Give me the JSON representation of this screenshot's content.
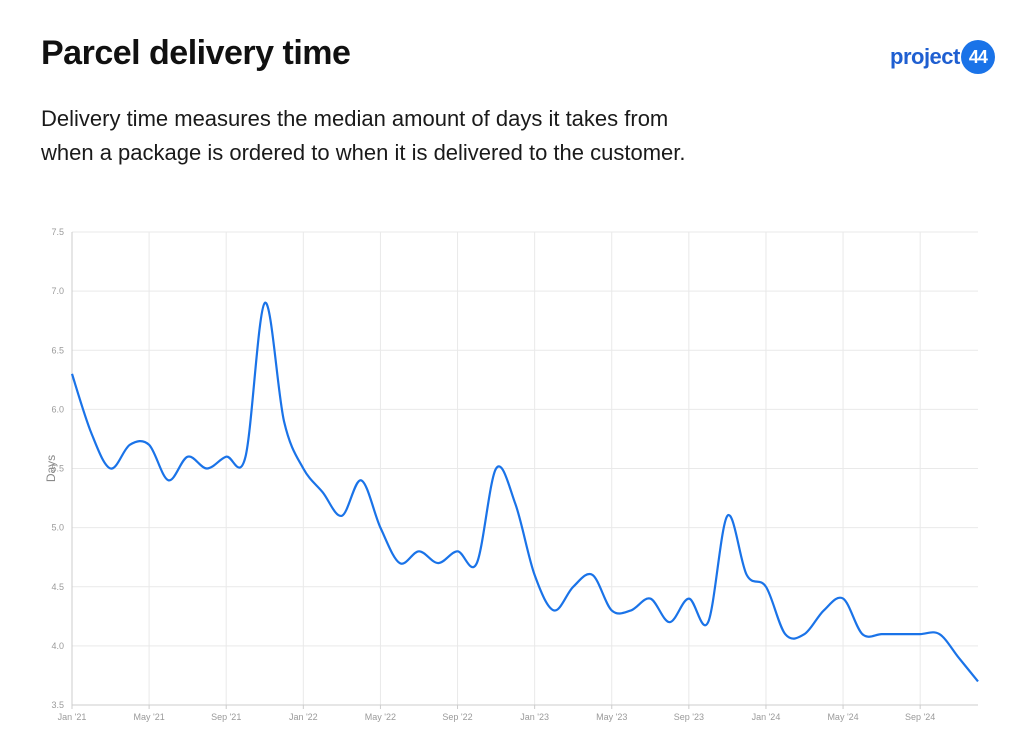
{
  "header": {
    "title": "Parcel delivery time",
    "subtitle_line1": "Delivery time measures the median amount of days it takes from",
    "subtitle_line2": "when a package is ordered to when it is delivered to the customer."
  },
  "logo": {
    "text": "project",
    "badge": "44",
    "color": "#1f5fd1",
    "badge_color": "#1a73e8"
  },
  "colors": {
    "line": "#1a73e8",
    "grid": "#e9e9e9",
    "axis": "#cccccc"
  },
  "chart_data": {
    "type": "line",
    "ylabel": "Days",
    "ylim": [
      3.5,
      7.5
    ],
    "y_ticks": [
      "3.5",
      "4.0",
      "4.5",
      "5.0",
      "5.5",
      "6.0",
      "6.5",
      "7.0",
      "7.5"
    ],
    "x_ticks": [
      "Jan '21",
      "May '21",
      "Sep '21",
      "Jan '22",
      "May '22",
      "Sep '22",
      "Jan '23",
      "May '23",
      "Sep '23",
      "Jan '24",
      "May '24",
      "Sep '24"
    ],
    "grid": true,
    "series": [
      {
        "x": [
          "2021-01",
          "2021-02",
          "2021-03",
          "2021-04",
          "2021-05",
          "2021-06",
          "2021-07",
          "2021-08",
          "2021-09",
          "2021-10",
          "2021-11",
          "2021-12",
          "2022-01",
          "2022-02",
          "2022-03",
          "2022-04",
          "2022-05",
          "2022-06",
          "2022-07",
          "2022-08",
          "2022-09",
          "2022-10",
          "2022-11",
          "2022-12",
          "2023-01",
          "2023-02",
          "2023-03",
          "2023-04",
          "2023-05",
          "2023-06",
          "2023-07",
          "2023-08",
          "2023-09",
          "2023-10",
          "2023-11",
          "2023-12",
          "2024-01",
          "2024-02",
          "2024-03",
          "2024-04",
          "2024-05",
          "2024-06",
          "2024-07",
          "2024-08",
          "2024-09",
          "2024-10",
          "2024-11"
        ],
        "y": [
          6.3,
          5.8,
          5.5,
          5.7,
          5.7,
          5.4,
          5.6,
          5.5,
          5.6,
          5.6,
          6.9,
          5.9,
          5.5,
          5.3,
          5.1,
          5.4,
          5.0,
          4.7,
          4.8,
          4.7,
          4.8,
          4.7,
          5.5,
          5.2,
          4.6,
          4.3,
          4.5,
          4.6,
          4.3,
          4.3,
          4.4,
          4.2,
          4.4,
          4.2,
          5.1,
          4.6,
          4.5,
          4.1,
          4.1,
          4.3,
          4.4,
          4.1,
          4.1,
          4.1,
          4.1,
          4.1,
          3.9
        ]
      }
    ],
    "last_point": {
      "x": "2024-12",
      "y": 3.7
    }
  }
}
